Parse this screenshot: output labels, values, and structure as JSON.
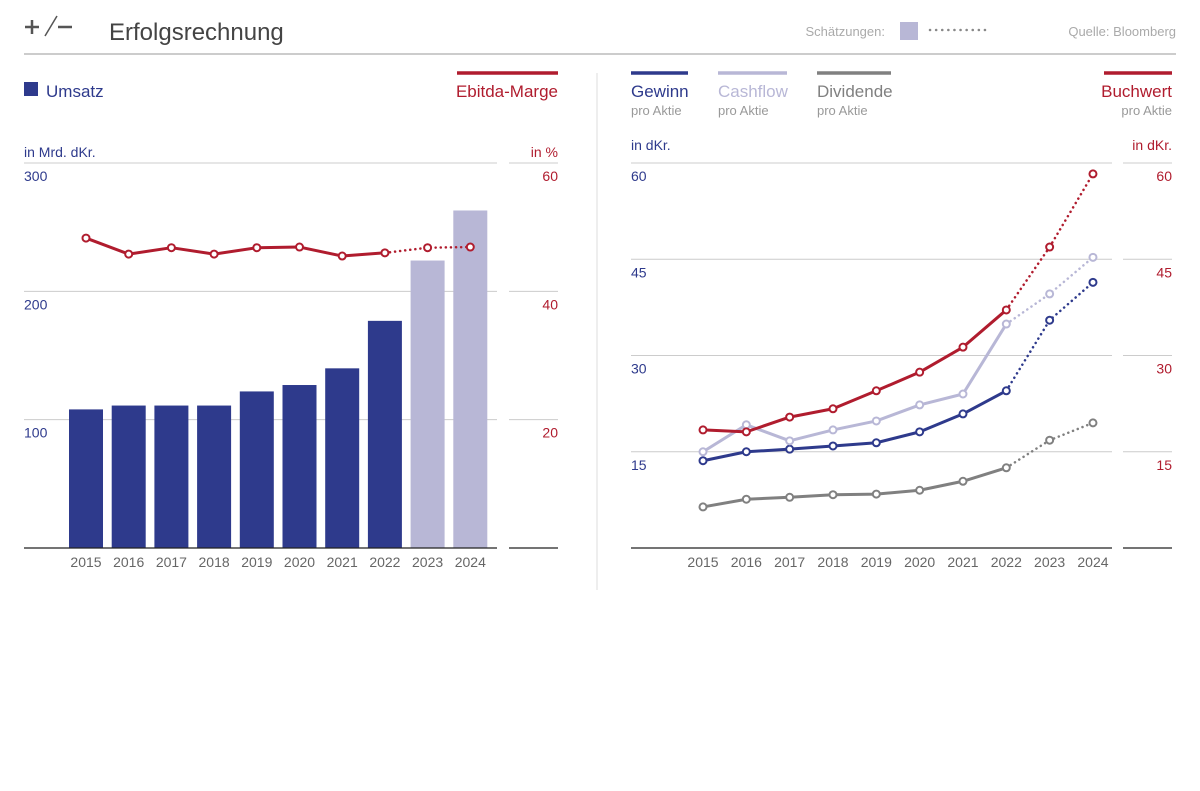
{
  "header": {
    "title": "Erfolgsrechnung",
    "estimates_label": "Schätzungen:",
    "source": "Quelle: Bloomberg"
  },
  "chart_data": [
    {
      "type": "bar",
      "categories": [
        "2015",
        "2016",
        "2017",
        "2018",
        "2019",
        "2020",
        "2021",
        "2022",
        "2023",
        "2024"
      ],
      "estimated": [
        false,
        false,
        false,
        false,
        false,
        false,
        false,
        false,
        true,
        true
      ],
      "estimate_color": "#b8b7d6",
      "series": [
        {
          "name": "Umsatz",
          "color": "#2e3a8c",
          "values": [
            108,
            111,
            111,
            111,
            122,
            127,
            140,
            177,
            224,
            263
          ]
        },
        {
          "name": "Ebitda-Marge",
          "type": "line",
          "axis": "y2",
          "color": "#b01c2e",
          "values": [
            48.3,
            45.8,
            46.8,
            45.8,
            46.8,
            46.9,
            45.5,
            46.0,
            46.8,
            46.9
          ]
        }
      ],
      "ylabel": "in Mrd. dKr.",
      "y2label": "in %",
      "ylim": [
        0,
        300
      ],
      "yticks": [
        100,
        200,
        300
      ],
      "y2lim": [
        0,
        60
      ],
      "y2ticks": [
        20,
        40,
        60
      ],
      "grid": true
    },
    {
      "type": "line",
      "categories": [
        "2015",
        "2016",
        "2017",
        "2018",
        "2019",
        "2020",
        "2021",
        "2022",
        "2023",
        "2024"
      ],
      "estimated": [
        false,
        false,
        false,
        false,
        false,
        false,
        false,
        false,
        true,
        true
      ],
      "series": [
        {
          "name": "Gewinn",
          "subtitle": "pro Aktie",
          "color": "#2e3a8c",
          "values": [
            13.6,
            15.0,
            15.4,
            15.9,
            16.4,
            18.1,
            20.9,
            24.5,
            35.5,
            41.4
          ]
        },
        {
          "name": "Cashflow",
          "subtitle": "pro Aktie",
          "color": "#b8b7d6",
          "values": [
            15.0,
            19.2,
            16.7,
            18.4,
            19.8,
            22.3,
            24.0,
            34.9,
            39.6,
            45.3
          ]
        },
        {
          "name": "Dividende",
          "subtitle": "pro Aktie",
          "color": "#808080",
          "values": [
            6.4,
            7.6,
            7.9,
            8.3,
            8.4,
            9.0,
            10.4,
            12.5,
            16.8,
            19.5
          ]
        },
        {
          "name": "Buchwert",
          "subtitle": "pro Aktie",
          "axis": "y2",
          "color": "#b01c2e",
          "values": [
            18.4,
            18.1,
            20.4,
            21.7,
            24.5,
            27.4,
            31.3,
            37.1,
            46.9,
            58.3
          ]
        }
      ],
      "ylabel": "in dKr.",
      "y2label": "in dKr.",
      "ylim": [
        0,
        60
      ],
      "yticks": [
        15,
        30,
        45,
        60
      ],
      "y2lim": [
        0,
        60
      ],
      "y2ticks": [
        15,
        30,
        45,
        60
      ],
      "grid": true
    }
  ]
}
